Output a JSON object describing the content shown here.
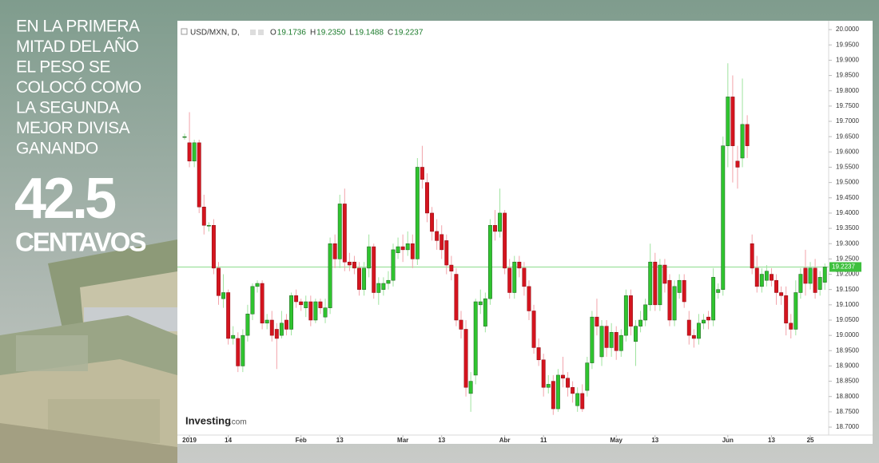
{
  "overlay": {
    "lines": [
      "EN LA PRIMERA",
      "MITAD DEL AÑO",
      "EL PESO SE",
      "COLOCÓ COMO",
      "LA SEGUNDA",
      "MEJOR DIVISA",
      "GANANDO"
    ],
    "big": "42.5",
    "unit": "CENTAVOS"
  },
  "chart_data": {
    "type": "candlestick",
    "legend": {
      "symbol": "USD/MXN, D,",
      "items": [
        {
          "key": "O",
          "text": "19.1736"
        },
        {
          "key": "H",
          "text": "19.2350"
        },
        {
          "key": "L",
          "text": "19.1488"
        },
        {
          "key": "C",
          "text": "19.2237"
        }
      ]
    },
    "brand": {
      "name": "Investing",
      "suffix": ".com"
    },
    "up_color": "#2fc42f",
    "down_color": "#d4141e",
    "last_color": "#8ddc8d",
    "last_price": 19.2237,
    "open": [
      19.65,
      19.63,
      19.57,
      19.63,
      19.42,
      19.36,
      19.36,
      19.22,
      19.12,
      19.14,
      18.99,
      18.99,
      18.9,
      19.0,
      19.07,
      19.16,
      19.17,
      19.04,
      19.05,
      19.02,
      19.0,
      19.05,
      19.02,
      19.13,
      19.11,
      19.09,
      19.11,
      19.05,
      19.11,
      19.06,
      19.09,
      19.3,
      19.25,
      19.43,
      19.24,
      19.24,
      19.22,
      19.15,
      19.22,
      19.29,
      19.14,
      19.15,
      19.17,
      19.18,
      19.27,
      19.29,
      19.28,
      19.3,
      19.25,
      19.55,
      19.5,
      19.4,
      19.34,
      19.33,
      19.31,
      19.23,
      19.2,
      19.05,
      19.02,
      18.81,
      18.87,
      19.1,
      19.03,
      19.12,
      19.36,
      19.34,
      19.4,
      19.22,
      19.14,
      19.24,
      19.22,
      19.16,
      19.08,
      18.96,
      18.92,
      18.83,
      18.85,
      18.76,
      18.87,
      18.86,
      18.83,
      18.77,
      18.81,
      18.82,
      18.91,
      19.06,
      18.93,
      19.03,
      18.96,
      19.01,
      18.95,
      19.0,
      19.13,
      18.98,
      19.03,
      19.05,
      19.1,
      19.24,
      19.1,
      19.23,
      19.18,
      19.05,
      19.14,
      19.18,
      19.05,
      19.0,
      18.99,
      19.04,
      19.06,
      19.05,
      19.14,
      19.15,
      19.62,
      19.78,
      19.57,
      19.58,
      19.69,
      19.3,
      19.22,
      19.16,
      19.18,
      19.2,
      19.18,
      19.14,
      19.13,
      19.04,
      19.02,
      19.14,
      19.22,
      19.17,
      19.22,
      19.15,
      19.1736
    ],
    "high": [
      19.66,
      19.73,
      19.64,
      19.64,
      19.46,
      19.37,
      19.38,
      19.24,
      19.2,
      19.15,
      19.03,
      19.01,
      19.02,
      19.1,
      19.17,
      19.18,
      19.18,
      19.07,
      19.08,
      19.04,
      19.08,
      19.07,
      19.14,
      19.15,
      19.12,
      19.13,
      19.13,
      19.12,
      19.12,
      19.12,
      19.32,
      19.33,
      19.46,
      19.48,
      19.27,
      19.26,
      19.24,
      19.24,
      19.33,
      19.3,
      19.19,
      19.19,
      19.21,
      19.3,
      19.32,
      19.33,
      19.34,
      19.33,
      19.58,
      19.62,
      19.53,
      19.42,
      19.38,
      19.36,
      19.33,
      19.26,
      19.22,
      19.08,
      19.05,
      18.88,
      19.12,
      19.15,
      19.14,
      19.38,
      19.41,
      19.48,
      19.41,
      19.25,
      19.26,
      19.26,
      19.24,
      19.18,
      19.1,
      18.99,
      18.94,
      18.87,
      18.87,
      18.89,
      18.93,
      18.88,
      18.85,
      18.83,
      18.84,
      18.93,
      19.08,
      19.12,
      19.05,
      19.05,
      19.04,
      19.03,
      19.02,
      19.15,
      19.15,
      19.05,
      19.08,
      19.12,
      19.3,
      19.27,
      19.25,
      19.25,
      19.2,
      19.18,
      19.2,
      19.2,
      19.08,
      19.02,
      19.07,
      19.07,
      19.08,
      19.22,
      19.17,
      19.65,
      19.89,
      19.85,
      19.62,
      19.84,
      19.72,
      19.33,
      19.26,
      19.22,
      19.23,
      19.22,
      19.2,
      19.16,
      19.16,
      19.07,
      19.18,
      19.22,
      19.28,
      19.24,
      19.25,
      19.21,
      19.235
    ],
    "low": [
      19.64,
      19.55,
      19.55,
      19.4,
      19.33,
      19.34,
      19.2,
      19.1,
      19.09,
      18.97,
      18.97,
      18.88,
      18.88,
      18.98,
      19.05,
      19.14,
      19.02,
      19.02,
      18.98,
      18.89,
      18.99,
      19.0,
      19.0,
      19.09,
      19.08,
      19.06,
      19.03,
      19.04,
      19.07,
      19.04,
      19.07,
      19.22,
      19.22,
      19.21,
      19.21,
      19.2,
      19.13,
      19.13,
      19.19,
      19.12,
      19.1,
      19.13,
      19.15,
      19.16,
      19.25,
      19.24,
      19.26,
      19.22,
      19.23,
      19.48,
      19.37,
      19.31,
      19.28,
      19.25,
      19.2,
      19.18,
      19.03,
      18.99,
      18.8,
      18.75,
      18.84,
      19.07,
      19.01,
      19.1,
      19.31,
      19.32,
      19.2,
      19.12,
      19.12,
      19.19,
      19.13,
      19.05,
      18.94,
      18.9,
      18.8,
      18.81,
      18.74,
      18.75,
      18.83,
      18.8,
      18.78,
      18.75,
      18.75,
      18.8,
      18.89,
      19.0,
      18.9,
      18.93,
      18.93,
      18.92,
      18.93,
      18.98,
      19.0,
      18.9,
      19.01,
      19.03,
      19.08,
      19.08,
      19.08,
      19.14,
      19.03,
      19.03,
      19.12,
      19.09,
      18.97,
      18.96,
      18.97,
      19.02,
      19.02,
      19.03,
      19.12,
      19.13,
      19.55,
      19.5,
      19.48,
      19.55,
      19.58,
      19.2,
      19.14,
      19.14,
      19.16,
      19.16,
      19.1,
      19.1,
      19.0,
      18.99,
      19.0,
      19.12,
      19.13,
      19.15,
      19.12,
      19.13,
      19.1488
    ],
    "close": [
      19.65,
      19.57,
      19.63,
      19.42,
      19.36,
      19.36,
      19.22,
      19.13,
      19.14,
      18.99,
      19.0,
      18.9,
      19.0,
      19.07,
      19.16,
      19.17,
      19.04,
      19.05,
      19.0,
      18.99,
      19.04,
      19.02,
      19.13,
      19.11,
      19.1,
      19.11,
      19.05,
      19.11,
      19.09,
      19.09,
      19.3,
      19.25,
      19.43,
      19.24,
      19.23,
      19.22,
      19.15,
      19.22,
      19.29,
      19.14,
      19.17,
      19.17,
      19.18,
      19.28,
      19.29,
      19.28,
      19.3,
      19.25,
      19.55,
      19.51,
      19.4,
      19.34,
      19.31,
      19.28,
      19.23,
      19.21,
      19.05,
      19.02,
      18.83,
      18.85,
      19.11,
      19.11,
      19.12,
      19.36,
      19.34,
      19.4,
      19.22,
      19.14,
      19.24,
      19.22,
      19.16,
      19.08,
      18.96,
      18.92,
      18.83,
      18.84,
      18.76,
      18.87,
      18.86,
      18.83,
      18.81,
      18.81,
      18.76,
      18.91,
      19.06,
      19.03,
      19.03,
      18.96,
      19.01,
      18.95,
      19.0,
      19.13,
      19.03,
      19.03,
      19.05,
      19.1,
      19.24,
      19.1,
      19.23,
      19.17,
      19.05,
      19.16,
      19.18,
      19.11,
      19.0,
      18.99,
      19.04,
      19.05,
      19.05,
      19.19,
      19.15,
      19.62,
      19.78,
      19.62,
      19.55,
      19.69,
      19.62,
      19.22,
      19.16,
      19.2,
      19.21,
      19.18,
      19.14,
      19.13,
      19.04,
      19.02,
      19.14,
      19.2,
      19.17,
      19.22,
      19.14,
      19.19,
      19.2237
    ],
    "xticks": [
      {
        "value": 1,
        "label": "2019"
      },
      {
        "value": 9,
        "label": "14"
      },
      {
        "value": 24,
        "label": "Feb"
      },
      {
        "value": 32,
        "label": "13"
      },
      {
        "value": 45,
        "label": "Mar"
      },
      {
        "value": 53,
        "label": "13"
      },
      {
        "value": 66,
        "label": "Abr"
      },
      {
        "value": 74,
        "label": "11"
      },
      {
        "value": 89,
        "label": "May"
      },
      {
        "value": 97,
        "label": "13"
      },
      {
        "value": 112,
        "label": "Jun"
      },
      {
        "value": 121,
        "label": "13"
      },
      {
        "value": 129,
        "label": "25"
      }
    ],
    "ylim": [
      18.674,
      20.029
    ],
    "yticks": [
      {
        "value": 18.7,
        "label": "18.7000"
      },
      {
        "value": 18.75,
        "label": "18.7500"
      },
      {
        "value": 18.8,
        "label": "18.8000"
      },
      {
        "value": 18.85,
        "label": "18.8500"
      },
      {
        "value": 18.9,
        "label": "18.9000"
      },
      {
        "value": 18.95,
        "label": "18.9500"
      },
      {
        "value": 19.0,
        "label": "19.0000"
      },
      {
        "value": 19.05,
        "label": "19.0500"
      },
      {
        "value": 19.1,
        "label": "19.1000"
      },
      {
        "value": 19.15,
        "label": "19.1500"
      },
      {
        "value": 19.2,
        "label": "19.2000"
      },
      {
        "value": 19.25,
        "label": "19.2500"
      },
      {
        "value": 19.3,
        "label": "19.3000"
      },
      {
        "value": 19.35,
        "label": "19.3500"
      },
      {
        "value": 19.4,
        "label": "19.4000"
      },
      {
        "value": 19.45,
        "label": "19.4500"
      },
      {
        "value": 19.5,
        "label": "19.5000"
      },
      {
        "value": 19.55,
        "label": "19.5500"
      },
      {
        "value": 19.6,
        "label": "19.6000"
      },
      {
        "value": 19.65,
        "label": "19.6500"
      },
      {
        "value": 19.7,
        "label": "19.7000"
      },
      {
        "value": 19.75,
        "label": "19.7500"
      },
      {
        "value": 19.8,
        "label": "19.8000"
      },
      {
        "value": 19.85,
        "label": "19.8500"
      },
      {
        "value": 19.9,
        "label": "19.9000"
      },
      {
        "value": 19.95,
        "label": "19.9500"
      },
      {
        "value": 20.0,
        "label": "20.0000"
      }
    ]
  }
}
